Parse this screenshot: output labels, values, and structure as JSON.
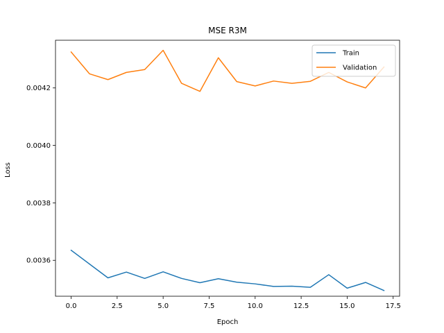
{
  "chart_data": {
    "type": "line",
    "title": "MSE R3M",
    "xlabel": "Epoch",
    "ylabel": "Loss",
    "xlim": [
      -0.85,
      17.85
    ],
    "ylim": [
      0.003475,
      0.004366
    ],
    "xticks": [
      0,
      2.5,
      5,
      7.5,
      10,
      12.5,
      15,
      17.5
    ],
    "xtick_labels": [
      "0.0",
      "2.5",
      "5.0",
      "7.5",
      "10.0",
      "12.5",
      "15.0",
      "17.5"
    ],
    "yticks": [
      0.0036,
      0.0038,
      0.004,
      0.0042
    ],
    "ytick_labels": [
      "0.0036",
      "0.0038",
      "0.0040",
      "0.0042"
    ],
    "grid": false,
    "legend": "top-right",
    "x": [
      0,
      1,
      2,
      3,
      4,
      5,
      6,
      7,
      8,
      9,
      10,
      11,
      12,
      13,
      14,
      15,
      16,
      17
    ],
    "series": [
      {
        "name": "Train",
        "color": "#1f77b4",
        "values": [
          0.003635,
          0.003587,
          0.003539,
          0.003559,
          0.003537,
          0.00356,
          0.003537,
          0.003522,
          0.003536,
          0.003524,
          0.003518,
          0.003509,
          0.00351,
          0.003506,
          0.00355,
          0.003503,
          0.003523,
          0.003495
        ]
      },
      {
        "name": "Validation",
        "color": "#ff7f0e",
        "values": [
          0.004325,
          0.004249,
          0.004229,
          0.004254,
          0.004264,
          0.004331,
          0.004216,
          0.004188,
          0.004305,
          0.004222,
          0.004207,
          0.004224,
          0.004216,
          0.004223,
          0.004254,
          0.004221,
          0.0042,
          0.004273
        ]
      }
    ]
  }
}
